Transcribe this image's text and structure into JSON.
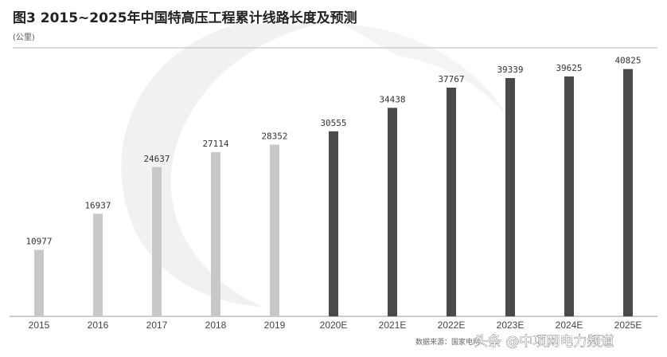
{
  "chart_data": {
    "type": "bar",
    "title": "图3 2015~2025年中国特高压工程累计线路长度及预测",
    "unit": "(公里)",
    "categories": [
      "2015",
      "2016",
      "2017",
      "2018",
      "2019",
      "2020E",
      "2021E",
      "2022E",
      "2023E",
      "2024E",
      "2025E"
    ],
    "values": [
      10977,
      16937,
      24637,
      27114,
      28352,
      30555,
      34438,
      37767,
      39339,
      39625,
      40825
    ],
    "forecast": [
      false,
      false,
      false,
      false,
      false,
      true,
      true,
      true,
      true,
      true,
      true
    ],
    "ylim": [
      0,
      45000
    ],
    "xlabel": "",
    "ylabel": "",
    "colors": {
      "actual": "#c8c8c8",
      "forecast": "#4a4a4a"
    }
  },
  "source": "数据来源：国家电网",
  "watermark": "头条 @中项网电力频道"
}
